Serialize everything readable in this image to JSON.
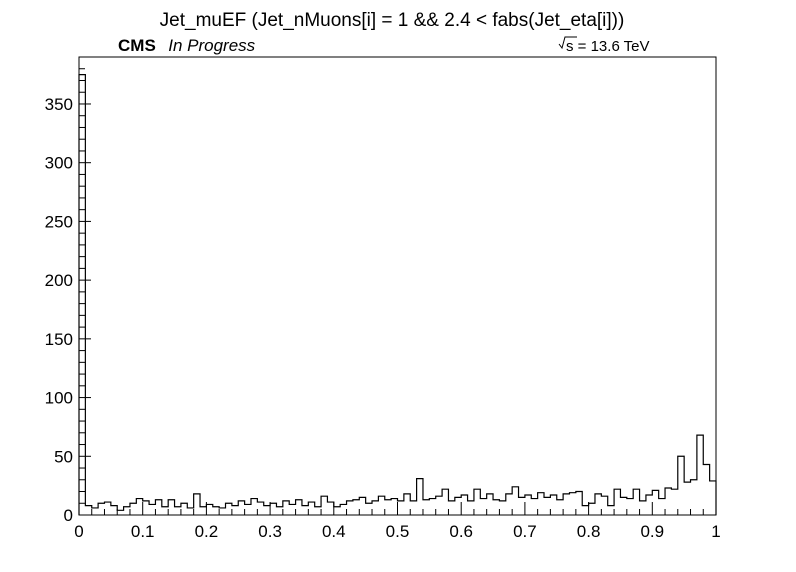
{
  "chart_data": {
    "type": "histogram",
    "title": "Jet_muEF (Jet_nMuons[i] = 1 && 2.4 < fabs(Jet_eta[i]))",
    "xlabel": "",
    "ylabel": "",
    "xlim": [
      0,
      1
    ],
    "ylim": [
      0,
      390
    ],
    "grid": false,
    "x_ticks": [
      "0",
      "0.1",
      "0.2",
      "0.3",
      "0.4",
      "0.5",
      "0.6",
      "0.7",
      "0.8",
      "0.9",
      "1"
    ],
    "y_ticks": [
      "0",
      "50",
      "100",
      "150",
      "200",
      "250",
      "300",
      "350"
    ],
    "bin_width": 0.01,
    "bin_edges_start": 0,
    "values": [
      375,
      8,
      6,
      10,
      11,
      8,
      4,
      7,
      10,
      14,
      12,
      9,
      13,
      7,
      13,
      7,
      10,
      6,
      18,
      7,
      9,
      7,
      6,
      10,
      8,
      12,
      9,
      14,
      11,
      8,
      10,
      7,
      12,
      9,
      13,
      8,
      11,
      7,
      16,
      11,
      7,
      9,
      12,
      13,
      15,
      10,
      12,
      16,
      13,
      14,
      12,
      18,
      12,
      31,
      13,
      14,
      16,
      22,
      12,
      15,
      17,
      12,
      22,
      14,
      18,
      13,
      12,
      18,
      24,
      15,
      17,
      14,
      19,
      15,
      17,
      13,
      18,
      19,
      20,
      8,
      10,
      18,
      16,
      8,
      22,
      15,
      14,
      22,
      12,
      17,
      21,
      14,
      23,
      22,
      50,
      28,
      30,
      68,
      43,
      29
    ]
  },
  "labels": {
    "cms": "CMS",
    "status": "In Progress",
    "energy_radicand": "s",
    "energy_value": " = 13.6 TeV"
  }
}
